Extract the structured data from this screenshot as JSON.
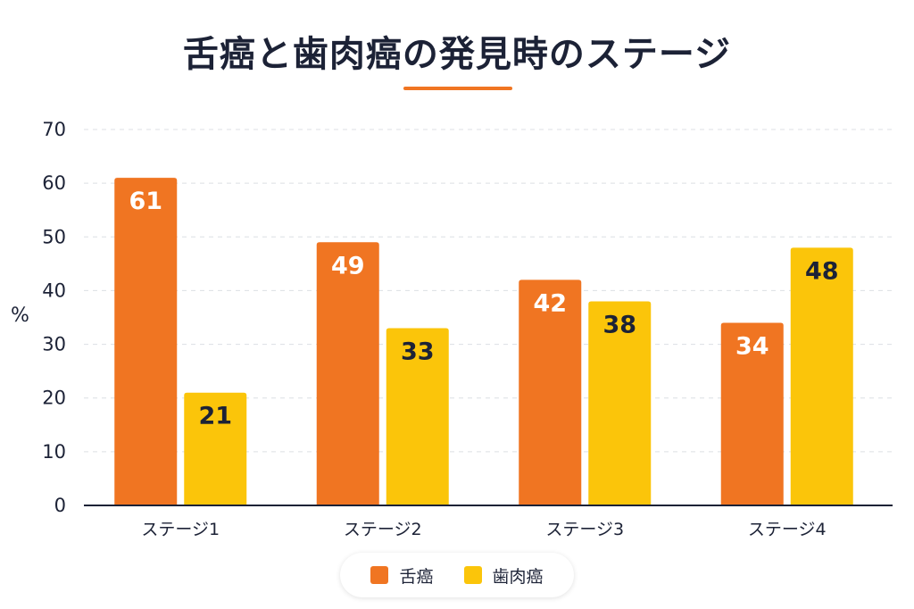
{
  "chart_data": {
    "type": "bar",
    "title": "舌癌と歯肉癌の発見時のステージ",
    "ylabel": "%",
    "xlabel": "",
    "ylim": [
      0,
      70
    ],
    "yticks": [
      0,
      10,
      20,
      30,
      40,
      50,
      60,
      70
    ],
    "grid": true,
    "legend_position": "bottom-center",
    "categories": [
      "ステージ1",
      "ステージ2",
      "ステージ3",
      "ステージ4"
    ],
    "series": [
      {
        "name": "舌癌",
        "values": [
          61,
          49,
          42,
          34
        ],
        "color": "#f07522",
        "label_color": "#ffffff"
      },
      {
        "name": "歯肉癌",
        "values": [
          21,
          33,
          38,
          48
        ],
        "color": "#fbc50a",
        "label_color": "#1c2236"
      }
    ]
  }
}
